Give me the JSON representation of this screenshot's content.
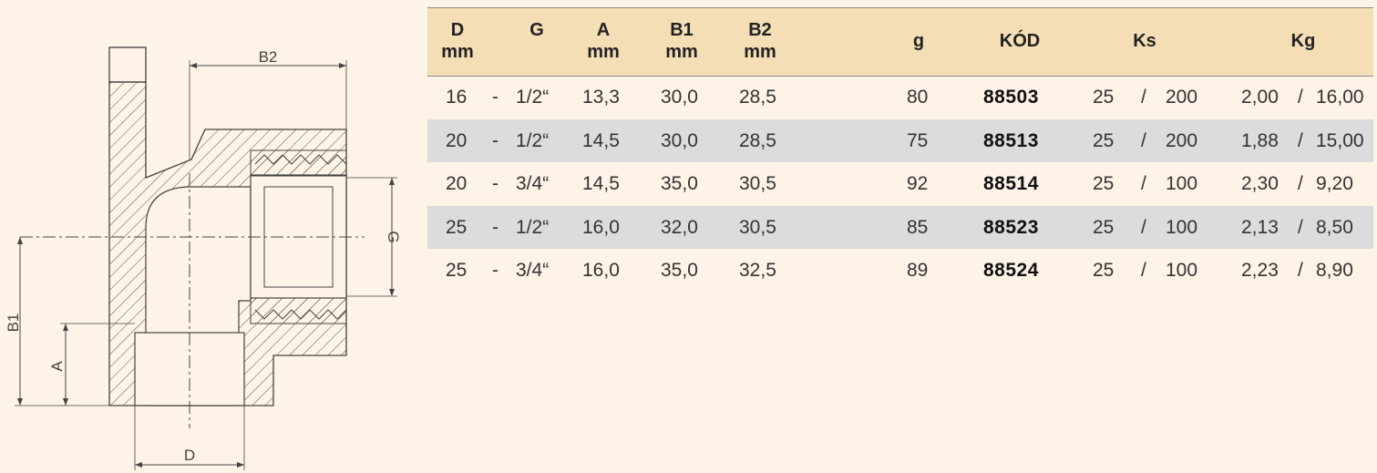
{
  "drawing": {
    "dimension_labels": {
      "b2": "B2",
      "b1": "B1",
      "a": "A",
      "g": "G",
      "d": "D"
    }
  },
  "table": {
    "headers": {
      "d": [
        "D",
        "mm"
      ],
      "g": [
        "G"
      ],
      "a": [
        "A",
        "mm"
      ],
      "b1": [
        "B1",
        "mm"
      ],
      "b2": [
        "B2",
        "mm"
      ],
      "weight_g": [
        "g"
      ],
      "kod": [
        "KÓD"
      ],
      "ks": [
        "Ks"
      ],
      "kg": [
        "Kg"
      ]
    },
    "separator": "-",
    "slash": "/",
    "rows": [
      {
        "d": "16",
        "g": "1/2“",
        "a": "13,3",
        "b1": "30,0",
        "b2": "28,5",
        "weight_g": "80",
        "kod": "88503",
        "ks_a": "25",
        "ks_b": "200",
        "kg_a": "2,00",
        "kg_b": "16,00"
      },
      {
        "d": "20",
        "g": "1/2“",
        "a": "14,5",
        "b1": "30,0",
        "b2": "28,5",
        "weight_g": "75",
        "kod": "88513",
        "ks_a": "25",
        "ks_b": "200",
        "kg_a": "1,88",
        "kg_b": "15,00"
      },
      {
        "d": "20",
        "g": "3/4“",
        "a": "14,5",
        "b1": "35,0",
        "b2": "30,5",
        "weight_g": "92",
        "kod": "88514",
        "ks_a": "25",
        "ks_b": "100",
        "kg_a": "2,30",
        "kg_b": "9,20"
      },
      {
        "d": "25",
        "g": "1/2“",
        "a": "16,0",
        "b1": "32,0",
        "b2": "30,5",
        "weight_g": "85",
        "kod": "88523",
        "ks_a": "25",
        "ks_b": "100",
        "kg_a": "2,13",
        "kg_b": "8,50"
      },
      {
        "d": "25",
        "g": "3/4“",
        "a": "16,0",
        "b1": "35,0",
        "b2": "32,5",
        "weight_g": "89",
        "kod": "88524",
        "ks_a": "25",
        "ks_b": "100",
        "kg_a": "2,23",
        "kg_b": "8,90"
      }
    ],
    "colors": {
      "header_bg": "#f3deb5",
      "shaded_row_bg": "#dcdcdc",
      "page_bg": "#fdf3e6"
    }
  }
}
